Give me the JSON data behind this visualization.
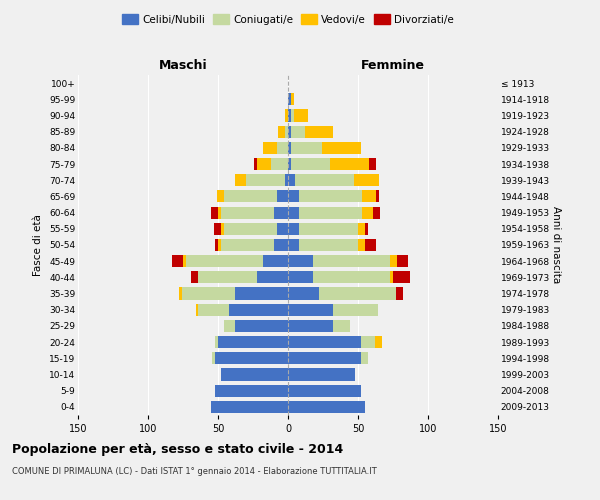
{
  "age_groups": [
    "0-4",
    "5-9",
    "10-14",
    "15-19",
    "20-24",
    "25-29",
    "30-34",
    "35-39",
    "40-44",
    "45-49",
    "50-54",
    "55-59",
    "60-64",
    "65-69",
    "70-74",
    "75-79",
    "80-84",
    "85-89",
    "90-94",
    "95-99",
    "100+"
  ],
  "birth_years": [
    "2009-2013",
    "2004-2008",
    "1999-2003",
    "1994-1998",
    "1989-1993",
    "1984-1988",
    "1979-1983",
    "1974-1978",
    "1969-1973",
    "1964-1968",
    "1959-1963",
    "1954-1958",
    "1949-1953",
    "1944-1948",
    "1939-1943",
    "1934-1938",
    "1929-1933",
    "1924-1928",
    "1919-1923",
    "1914-1918",
    "≤ 1913"
  ],
  "males": {
    "celibi": [
      55,
      52,
      48,
      52,
      50,
      38,
      42,
      38,
      22,
      18,
      10,
      8,
      10,
      8,
      2,
      0,
      0,
      0,
      0,
      0,
      0
    ],
    "coniugati": [
      0,
      0,
      0,
      2,
      2,
      8,
      22,
      38,
      42,
      55,
      38,
      38,
      38,
      38,
      28,
      12,
      8,
      2,
      0,
      0,
      0
    ],
    "vedovi": [
      0,
      0,
      0,
      0,
      0,
      0,
      2,
      2,
      0,
      2,
      2,
      2,
      2,
      5,
      8,
      10,
      10,
      5,
      2,
      0,
      0
    ],
    "divorziati": [
      0,
      0,
      0,
      0,
      0,
      0,
      0,
      0,
      5,
      8,
      2,
      5,
      5,
      0,
      0,
      2,
      0,
      0,
      0,
      0,
      0
    ]
  },
  "females": {
    "nubili": [
      55,
      52,
      48,
      52,
      52,
      32,
      32,
      22,
      18,
      18,
      8,
      8,
      8,
      8,
      5,
      2,
      2,
      2,
      2,
      2,
      0
    ],
    "coniugate": [
      0,
      0,
      0,
      5,
      10,
      12,
      32,
      55,
      55,
      55,
      42,
      42,
      45,
      45,
      42,
      28,
      22,
      10,
      2,
      0,
      0
    ],
    "vedove": [
      0,
      0,
      0,
      0,
      5,
      0,
      0,
      0,
      2,
      5,
      5,
      5,
      8,
      10,
      18,
      28,
      28,
      20,
      10,
      2,
      0
    ],
    "divorziate": [
      0,
      0,
      0,
      0,
      0,
      0,
      0,
      5,
      12,
      8,
      8,
      2,
      5,
      2,
      0,
      5,
      0,
      0,
      0,
      0,
      0
    ]
  },
  "colors": {
    "celibi": "#4472c4",
    "coniugati": "#c5d9a0",
    "vedovi": "#ffc000",
    "divorziati": "#c00000"
  },
  "title": "Popolazione per età, sesso e stato civile - 2014",
  "subtitle": "COMUNE DI PRIMALUNA (LC) - Dati ISTAT 1° gennaio 2014 - Elaborazione TUTTITALIA.IT",
  "xlabel_left": "Maschi",
  "xlabel_right": "Femmine",
  "ylabel_left": "Fasce di età",
  "ylabel_right": "Anni di nascita",
  "xlim": 150,
  "background_color": "#f0f0f0",
  "legend_labels": [
    "Celibi/Nubili",
    "Coniugati/e",
    "Vedovi/e",
    "Divorziati/e"
  ]
}
